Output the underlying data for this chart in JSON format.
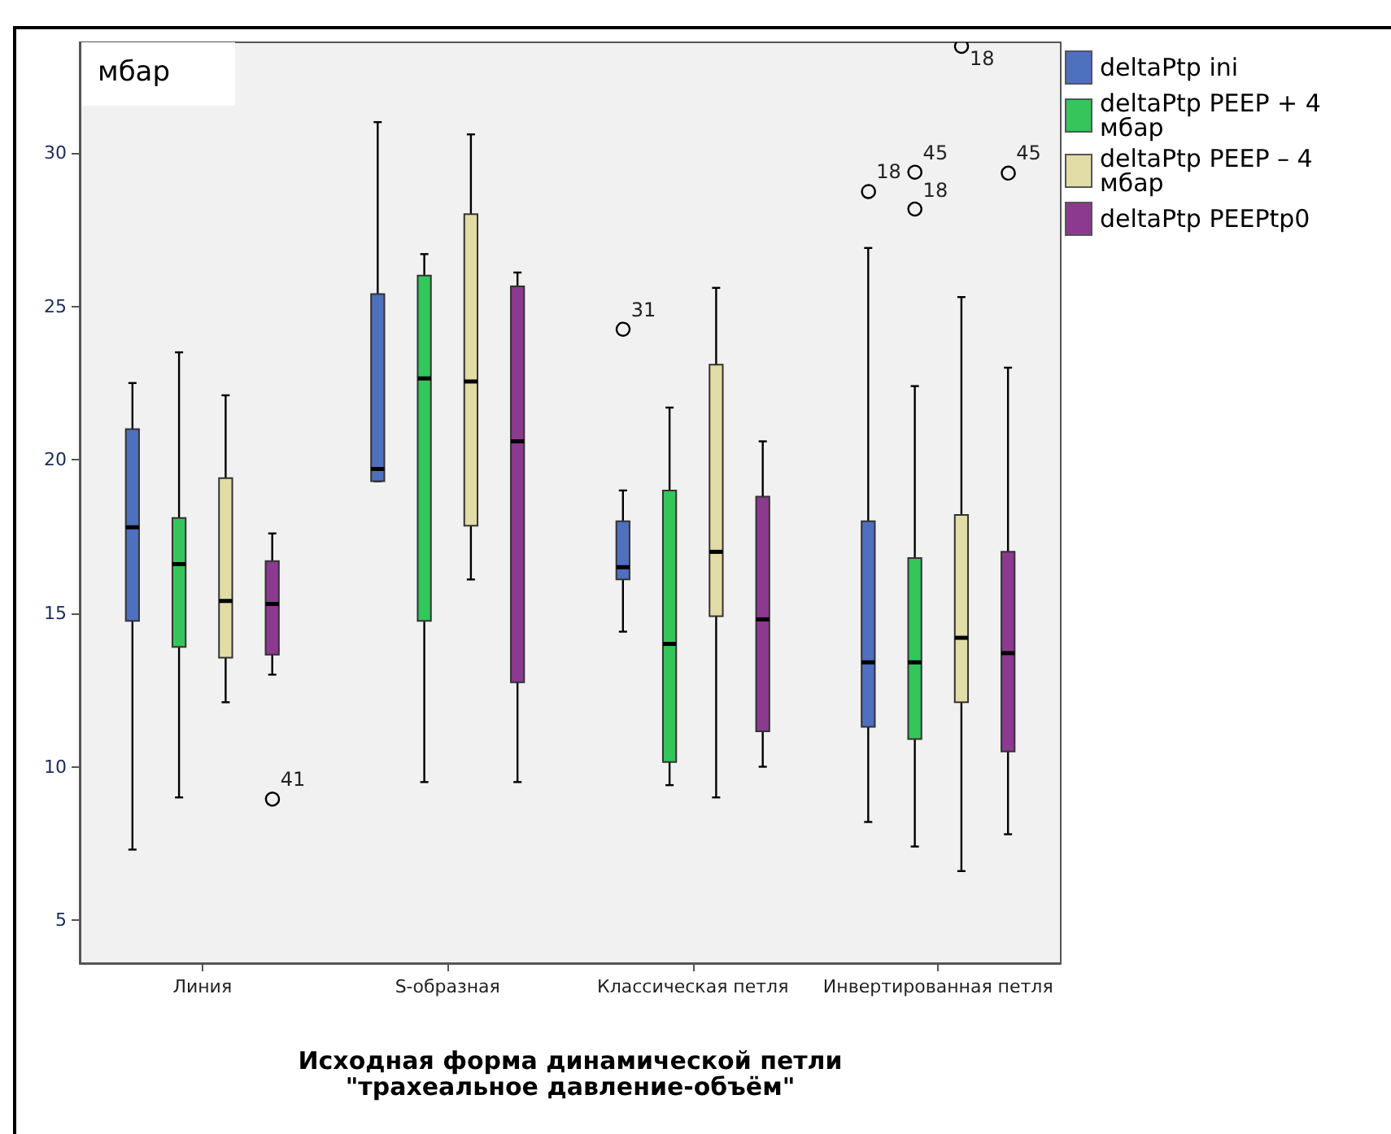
{
  "chart_data": {
    "type": "box",
    "ylabel": "мбар",
    "xlabel": "Исходная форма динамической петли\n\"трахеальное давление-объём\"",
    "categories": [
      "Линия",
      "S-образная",
      "Классическая петля",
      "Инвертированная петля"
    ],
    "ylim": [
      3.6,
      33.6
    ],
    "yticks": [
      5,
      10,
      15,
      20,
      25,
      30
    ],
    "grid": false,
    "legend": "top right",
    "series": [
      {
        "name": "deltaPtp ini",
        "color": "#4f6fbf",
        "boxes": [
          {
            "low": 7.3,
            "q1": 14.75,
            "median": 17.8,
            "q3": 21.0,
            "high": 22.5
          },
          {
            "low": 19.3,
            "q1": 19.3,
            "median": 19.7,
            "q3": 25.4,
            "high": 31.0
          },
          {
            "low": 14.4,
            "q1": 16.1,
            "median": 16.5,
            "q3": 18.0,
            "high": 19.0,
            "outliers": [
              24.3
            ]
          },
          {
            "low": 8.2,
            "q1": 11.3,
            "median": 13.4,
            "q3": 18.0,
            "high": 26.9,
            "outliers": [
              28.8
            ]
          }
        ]
      },
      {
        "name": "deltaPtp PEEP + 4 мбар",
        "color": "#35c55a",
        "boxes": [
          {
            "low": 9.0,
            "q1": 13.9,
            "median": 16.6,
            "q3": 18.1,
            "high": 23.5
          },
          {
            "low": 9.5,
            "q1": 14.75,
            "median": 22.65,
            "q3": 26.0,
            "high": 26.7
          },
          {
            "low": 9.4,
            "q1": 10.15,
            "median": 14.0,
            "q3": 19.0,
            "high": 21.7
          },
          {
            "low": 7.4,
            "q1": 10.9,
            "median": 13.4,
            "q3": 16.8,
            "high": 22.4,
            "outliers": [
              29.4,
              28.2
            ]
          }
        ]
      },
      {
        "name": "deltaPtp PEEP – 4 мбар",
        "color": "#e2dca6",
        "boxes": [
          {
            "low": 12.1,
            "q1": 13.55,
            "median": 15.4,
            "q3": 19.4,
            "high": 22.1
          },
          {
            "low": 16.1,
            "q1": 17.85,
            "median": 22.55,
            "q3": 28.0,
            "high": 30.6
          },
          {
            "low": 9.0,
            "q1": 14.9,
            "median": 17.0,
            "q3": 23.1,
            "high": 25.6
          },
          {
            "low": 6.6,
            "q1": 12.1,
            "median": 14.2,
            "q3": 18.2,
            "high": 25.3,
            "outliers": [
              33.5
            ]
          }
        ]
      },
      {
        "name": "deltaPtp PEEPtp0",
        "color": "#8b3a8f",
        "boxes": [
          {
            "low": 13.0,
            "q1": 13.65,
            "median": 15.3,
            "q3": 16.7,
            "high": 17.6,
            "outliers": [
              9.0
            ]
          },
          {
            "low": 9.5,
            "q1": 12.75,
            "median": 20.6,
            "q3": 25.65,
            "high": 26.1
          },
          {
            "low": 10.0,
            "q1": 11.15,
            "median": 14.8,
            "q3": 18.8,
            "high": 20.6
          },
          {
            "low": 7.8,
            "q1": 10.5,
            "median": 13.7,
            "q3": 17.0,
            "high": 23.0,
            "outliers": [
              29.4
            ]
          }
        ]
      }
    ],
    "annotations": [
      "31",
      "18",
      "45",
      "18",
      "18",
      "41",
      "45"
    ]
  }
}
